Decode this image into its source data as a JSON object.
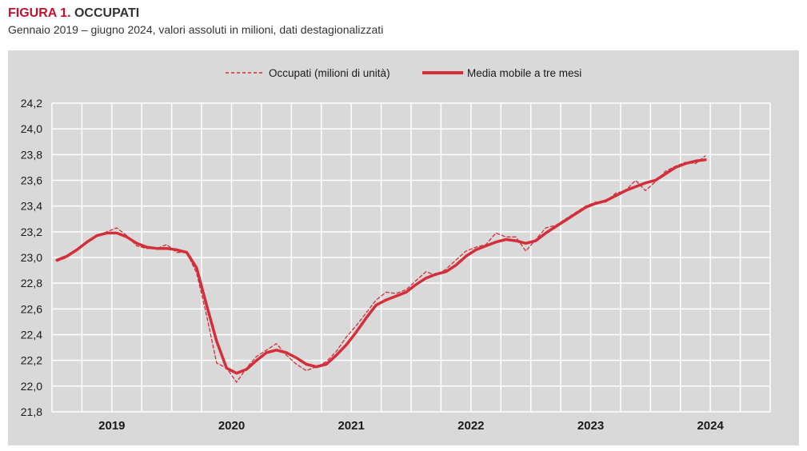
{
  "figure": {
    "label": "FIGURA 1.",
    "title": "OCCUPATI",
    "subtitle": "Gennaio 2019 – giugno 2024, valori assoluti in milioni, dati destagionalizzati"
  },
  "chart_data": {
    "type": "line",
    "title": "OCCUPATI",
    "xlabel": "",
    "ylabel": "",
    "x_tick_labels": [
      "2019",
      "2020",
      "2021",
      "2022",
      "2023",
      "2024"
    ],
    "y_ticks": [
      21.8,
      22.0,
      22.2,
      22.4,
      22.6,
      22.8,
      23.0,
      23.2,
      23.4,
      23.6,
      23.8,
      24.0,
      24.2
    ],
    "y_tick_labels": [
      "21,8",
      "22,0",
      "22,2",
      "22,4",
      "22,6",
      "22,8",
      "23,0",
      "23,2",
      "23,4",
      "23,6",
      "23,8",
      "24,0",
      "24,2"
    ],
    "ylim": [
      21.8,
      24.2
    ],
    "x_range": [
      "2019-01",
      "2024-12"
    ],
    "grid": true,
    "legend_position": "top-center",
    "colors": {
      "series": "#d32f3a",
      "panel": "#d9d9d9",
      "grid": "#ffffff"
    },
    "series": [
      {
        "name": "Occupati (milioni di unità)",
        "style": "dashed",
        "x": [
          "2019-01",
          "2019-02",
          "2019-03",
          "2019-04",
          "2019-05",
          "2019-06",
          "2019-07",
          "2019-08",
          "2019-09",
          "2019-10",
          "2019-11",
          "2019-12",
          "2020-01",
          "2020-02",
          "2020-03",
          "2020-04",
          "2020-05",
          "2020-06",
          "2020-07",
          "2020-08",
          "2020-09",
          "2020-10",
          "2020-11",
          "2020-12",
          "2021-01",
          "2021-02",
          "2021-03",
          "2021-04",
          "2021-05",
          "2021-06",
          "2021-07",
          "2021-08",
          "2021-09",
          "2021-10",
          "2021-11",
          "2021-12",
          "2022-01",
          "2022-02",
          "2022-03",
          "2022-04",
          "2022-05",
          "2022-06",
          "2022-07",
          "2022-08",
          "2022-09",
          "2022-10",
          "2022-11",
          "2022-12",
          "2023-01",
          "2023-02",
          "2023-03",
          "2023-04",
          "2023-05",
          "2023-06",
          "2023-07",
          "2023-08",
          "2023-09",
          "2023-10",
          "2023-11",
          "2023-12",
          "2024-01",
          "2024-02",
          "2024-03",
          "2024-04",
          "2024-05",
          "2024-06"
        ],
        "values": [
          22.97,
          23.0,
          23.06,
          23.12,
          23.17,
          23.2,
          23.23,
          23.17,
          23.09,
          23.07,
          23.07,
          23.1,
          23.04,
          23.04,
          22.88,
          22.55,
          22.18,
          22.14,
          22.03,
          22.14,
          22.23,
          22.28,
          22.33,
          22.24,
          22.17,
          22.12,
          22.15,
          22.19,
          22.27,
          22.38,
          22.47,
          22.57,
          22.67,
          22.73,
          22.72,
          22.75,
          22.82,
          22.89,
          22.86,
          22.91,
          22.98,
          23.05,
          23.08,
          23.1,
          23.19,
          23.16,
          23.16,
          23.05,
          23.14,
          23.23,
          23.25,
          23.3,
          23.35,
          23.4,
          23.43,
          23.43,
          23.5,
          23.52,
          23.6,
          23.52,
          23.59,
          23.67,
          23.71,
          23.74,
          23.73,
          23.79
        ]
      },
      {
        "name": "Media mobile a tre mesi",
        "style": "solid",
        "x": [
          "2019-01",
          "2019-02",
          "2019-03",
          "2019-04",
          "2019-05",
          "2019-06",
          "2019-07",
          "2019-08",
          "2019-09",
          "2019-10",
          "2019-11",
          "2019-12",
          "2020-01",
          "2020-02",
          "2020-03",
          "2020-04",
          "2020-05",
          "2020-06",
          "2020-07",
          "2020-08",
          "2020-09",
          "2020-10",
          "2020-11",
          "2020-12",
          "2021-01",
          "2021-02",
          "2021-03",
          "2021-04",
          "2021-05",
          "2021-06",
          "2021-07",
          "2021-08",
          "2021-09",
          "2021-10",
          "2021-11",
          "2021-12",
          "2022-01",
          "2022-02",
          "2022-03",
          "2022-04",
          "2022-05",
          "2022-06",
          "2022-07",
          "2022-08",
          "2022-09",
          "2022-10",
          "2022-11",
          "2022-12",
          "2023-01",
          "2023-02",
          "2023-03",
          "2023-04",
          "2023-05",
          "2023-06",
          "2023-07",
          "2023-08",
          "2023-09",
          "2023-10",
          "2023-11",
          "2023-12",
          "2024-01",
          "2024-02",
          "2024-03",
          "2024-04",
          "2024-05",
          "2024-06"
        ],
        "values": [
          22.98,
          23.01,
          23.06,
          23.12,
          23.17,
          23.19,
          23.19,
          23.16,
          23.11,
          23.08,
          23.07,
          23.07,
          23.06,
          23.04,
          22.92,
          22.63,
          22.35,
          22.14,
          22.1,
          22.13,
          22.2,
          22.26,
          22.28,
          22.26,
          22.22,
          22.17,
          22.15,
          22.17,
          22.24,
          22.32,
          22.42,
          22.53,
          22.63,
          22.67,
          22.7,
          22.73,
          22.79,
          22.84,
          22.87,
          22.89,
          22.94,
          23.01,
          23.06,
          23.09,
          23.12,
          23.14,
          23.13,
          23.11,
          23.13,
          23.19,
          23.24,
          23.29,
          23.34,
          23.39,
          23.42,
          23.44,
          23.48,
          23.52,
          23.55,
          23.58,
          23.6,
          23.65,
          23.7,
          23.73,
          23.75,
          23.76
        ]
      }
    ]
  }
}
